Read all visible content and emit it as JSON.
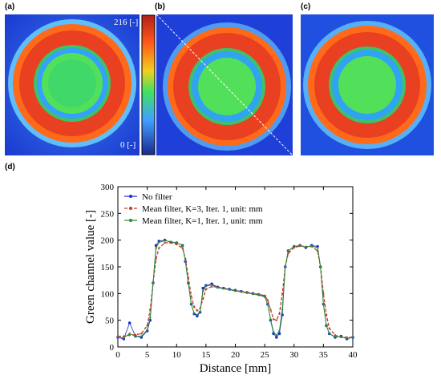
{
  "panels": {
    "a": "(a)",
    "b": "(b)",
    "c": "(c)",
    "d": "(d)"
  },
  "colorbar": {
    "max_label": "216 [-]",
    "min_label": "0 [-]"
  },
  "colors": {
    "ring_red": "#e84020",
    "inner_green": "#30d060",
    "background_blue": "#1e3fd8",
    "no_filter": "#1c2fd0",
    "mean_k3": "#c0392b",
    "mean_k1": "#2e8b2e"
  },
  "chart_data": {
    "type": "line",
    "xlabel": "Distance [mm]",
    "ylabel": "Green channel value [-]",
    "xlim": [
      0,
      40
    ],
    "ylim": [
      0,
      300
    ],
    "xticks": [
      "0",
      "5",
      "10",
      "15",
      "20",
      "25",
      "30",
      "35",
      "40"
    ],
    "yticks": [
      "0",
      "50",
      "100",
      "150",
      "200",
      "250",
      "300"
    ],
    "legend_position": "top-left",
    "series": [
      {
        "name": "No filter",
        "x": [
          0,
          1,
          2,
          3,
          4,
          5,
          5.5,
          6,
          6.5,
          7,
          8,
          9,
          10,
          11,
          11.5,
          12,
          12.5,
          13,
          13.5,
          14,
          14.5,
          15,
          16,
          17,
          18,
          19,
          20,
          21,
          22,
          23,
          24,
          25,
          25.5,
          26,
          26.5,
          27,
          27.5,
          28,
          28.5,
          29,
          30,
          31,
          32,
          33,
          34,
          34.5,
          35,
          35.5,
          36,
          37,
          38,
          39,
          40
        ],
        "y": [
          18,
          15,
          45,
          20,
          18,
          30,
          50,
          120,
          190,
          198,
          200,
          196,
          195,
          190,
          160,
          120,
          80,
          62,
          58,
          65,
          110,
          115,
          118,
          112,
          110,
          108,
          106,
          104,
          102,
          100,
          98,
          95,
          80,
          50,
          25,
          18,
          25,
          60,
          150,
          180,
          188,
          190,
          186,
          190,
          188,
          150,
          80,
          40,
          25,
          18,
          20,
          15,
          18
        ]
      },
      {
        "name": "Mean filter, K=3, Iter. 1, unit: mm",
        "x": [
          0,
          1,
          2,
          3,
          4,
          5,
          5.5,
          6,
          6.5,
          7,
          8,
          9,
          10,
          11,
          11.5,
          12,
          12.5,
          13,
          13.5,
          14,
          14.5,
          15,
          16,
          17,
          18,
          19,
          20,
          21,
          22,
          23,
          24,
          25,
          25.5,
          26,
          26.5,
          27,
          27.5,
          28,
          28.5,
          29,
          30,
          31,
          32,
          33,
          34,
          34.5,
          35,
          35.5,
          36,
          37,
          38,
          39,
          40
        ],
        "y": [
          20,
          20,
          22,
          23,
          25,
          40,
          70,
          120,
          165,
          185,
          195,
          195,
          192,
          185,
          165,
          130,
          95,
          75,
          68,
          72,
          90,
          108,
          113,
          112,
          110,
          107,
          105,
          104,
          102,
          100,
          99,
          96,
          88,
          70,
          52,
          50,
          62,
          100,
          150,
          175,
          186,
          189,
          188,
          188,
          180,
          150,
          100,
          60,
          35,
          22,
          18,
          18,
          18
        ]
      },
      {
        "name": "Mean filter, K=1, Iter. 1, unit: mm",
        "x": [
          0,
          1,
          2,
          3,
          4,
          5,
          5.5,
          6,
          6.5,
          7,
          8,
          9,
          10,
          11,
          11.5,
          12,
          12.5,
          13,
          13.5,
          14,
          14.5,
          15,
          16,
          17,
          18,
          19,
          20,
          21,
          22,
          23,
          24,
          25,
          25.5,
          26,
          26.5,
          27,
          27.5,
          28,
          28.5,
          29,
          30,
          31,
          32,
          33,
          34,
          34.5,
          35,
          35.5,
          36,
          37,
          38,
          39,
          40
        ],
        "y": [
          18,
          17,
          25,
          20,
          20,
          32,
          55,
          120,
          185,
          196,
          199,
          197,
          195,
          190,
          160,
          118,
          80,
          63,
          60,
          66,
          105,
          114,
          116,
          111,
          109,
          107,
          105,
          103,
          101,
          99,
          97,
          94,
          80,
          52,
          28,
          22,
          30,
          70,
          150,
          180,
          188,
          190,
          187,
          189,
          186,
          150,
          80,
          40,
          25,
          19,
          19,
          16,
          18
        ]
      }
    ]
  }
}
